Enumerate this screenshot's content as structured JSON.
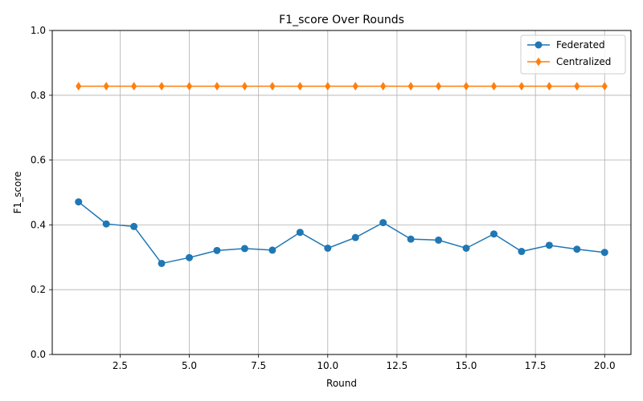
{
  "chart_data": {
    "type": "line",
    "title": "F1_score Over Rounds",
    "xlabel": "Round",
    "ylabel": "F1_score",
    "xlim": [
      0.05,
      20.95
    ],
    "ylim": [
      0.0,
      1.0
    ],
    "xticks": [
      2.5,
      5.0,
      7.5,
      10.0,
      12.5,
      15.0,
      17.5,
      20.0
    ],
    "xtick_labels": [
      "2.5",
      "5.0",
      "7.5",
      "10.0",
      "12.5",
      "15.0",
      "17.5",
      "20.0"
    ],
    "yticks": [
      0.0,
      0.2,
      0.4,
      0.6,
      0.8,
      1.0
    ],
    "ytick_labels": [
      "0.0",
      "0.2",
      "0.4",
      "0.6",
      "0.8",
      "1.0"
    ],
    "grid": true,
    "legend_position": "top-right",
    "x": [
      1,
      2,
      3,
      4,
      5,
      6,
      7,
      8,
      9,
      10,
      11,
      12,
      13,
      14,
      15,
      16,
      17,
      18,
      19,
      20
    ],
    "series": [
      {
        "name": "Federated",
        "color": "#1f77b4",
        "marker": "circle",
        "values": [
          0.471,
          0.403,
          0.395,
          0.281,
          0.299,
          0.321,
          0.327,
          0.322,
          0.377,
          0.328,
          0.361,
          0.407,
          0.356,
          0.353,
          0.328,
          0.372,
          0.318,
          0.337,
          0.325,
          0.315
        ]
      },
      {
        "name": "Centralized",
        "color": "#ff7f0e",
        "marker": "diamond",
        "values": [
          0.828,
          0.828,
          0.828,
          0.828,
          0.828,
          0.828,
          0.828,
          0.828,
          0.828,
          0.828,
          0.828,
          0.828,
          0.828,
          0.828,
          0.828,
          0.828,
          0.828,
          0.828,
          0.828,
          0.828
        ]
      }
    ]
  }
}
